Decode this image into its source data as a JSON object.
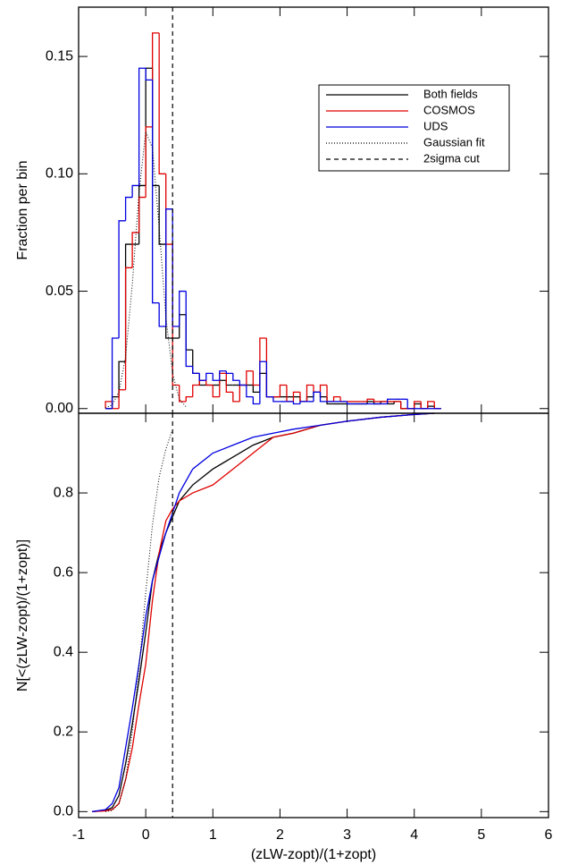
{
  "chart_data": [
    {
      "type": "histogram",
      "ylabel": "Fraction per bin",
      "xlim": [
        -1,
        6
      ],
      "ylim": [
        -0.002,
        0.171
      ],
      "yticks": [
        {
          "value": 0.0,
          "label": "0.00"
        },
        {
          "value": 0.05,
          "label": "0.05"
        },
        {
          "value": 0.1,
          "label": "0.10"
        },
        {
          "value": 0.15,
          "label": "0.15"
        }
      ],
      "bins": [
        -0.6,
        -0.5,
        -0.4,
        -0.3,
        -0.2,
        -0.1,
        0.0,
        0.1,
        0.2,
        0.3,
        0.4,
        0.5,
        0.6,
        0.7,
        0.8,
        0.9,
        1.0,
        1.1,
        1.2,
        1.3,
        1.4,
        1.5,
        1.6,
        1.7,
        1.8,
        1.9,
        2.0,
        2.1,
        2.2,
        2.3,
        2.4,
        2.5,
        2.6,
        2.7,
        2.8,
        2.9,
        3.0,
        3.1,
        3.2,
        3.3,
        3.4,
        3.5,
        3.6,
        3.7,
        3.8,
        3.9,
        4.0,
        4.1,
        4.2,
        4.3,
        4.4
      ],
      "series": [
        {
          "name": "Both fields",
          "color": "#000000",
          "values": [
            0,
            0.005,
            0.02,
            0.07,
            0.07,
            0.095,
            0.145,
            0.095,
            0.07,
            0.03,
            0.03,
            0.04,
            0.025,
            0.015,
            0.01,
            0.01,
            0.01,
            0.012,
            0.01,
            0.01,
            0.01,
            0.01,
            0.007,
            0.015,
            0.005,
            0.005,
            0.005,
            0.005,
            0.005,
            0.003,
            0.005,
            0.007,
            0.005,
            0.002,
            0.002,
            0.002,
            0.002,
            0.002,
            0.002,
            0.003,
            0.002,
            0.003,
            0.002,
            0.003,
            0,
            0,
            0.002,
            0,
            0.001,
            0
          ]
        },
        {
          "name": "COSMOS",
          "color": "#e00000",
          "values": [
            0.003,
            0,
            0.008,
            0.06,
            0.075,
            0.09,
            0.12,
            0.16,
            0.1,
            0.07,
            0.01,
            0.003,
            0.005,
            0.01,
            0.012,
            0.01,
            0.005,
            0.015,
            0.007,
            0.003,
            0.01,
            0.016,
            0.01,
            0.03,
            0.005,
            0.005,
            0.01,
            0.003,
            0.007,
            0.003,
            0.01,
            0.007,
            0.01,
            0.003,
            0.005,
            0.003,
            0.003,
            0.003,
            0.003,
            0.004,
            0.003,
            0.003,
            0.003,
            0.003,
            0,
            0,
            0.003,
            0,
            0.003,
            0
          ]
        },
        {
          "name": "UDS",
          "color": "#0000e0",
          "values": [
            0,
            0.03,
            0.08,
            0.09,
            0.095,
            0.145,
            0.14,
            0.045,
            0.035,
            0.085,
            0.035,
            0.05,
            0.018,
            0.015,
            0.012,
            0.015,
            0.012,
            0.016,
            0.015,
            0.012,
            0.01,
            0.005,
            0.002,
            0.02,
            0.005,
            0.003,
            0.003,
            0.003,
            0.002,
            0.003,
            0.003,
            0.007,
            0.003,
            0.003,
            0.003,
            0.003,
            0.002,
            0.002,
            0.002,
            0.002,
            0.002,
            0.002,
            0.004,
            0.004,
            0.004,
            0,
            0,
            0,
            0,
            0
          ]
        }
      ],
      "fit": {
        "name": "Gaussian fit",
        "color": "#000000",
        "x": [
          -0.6,
          -0.5,
          -0.4,
          -0.3,
          -0.2,
          -0.1,
          0.0,
          0.1,
          0.2,
          0.3,
          0.4,
          0.5,
          0.6
        ],
        "values": [
          0.0003,
          0.0016,
          0.007,
          0.022,
          0.053,
          0.092,
          0.118,
          0.111,
          0.077,
          0.039,
          0.015,
          0.004,
          0.0008
        ]
      },
      "vline": {
        "name": "2sigma cut",
        "color": "#000000",
        "x": 0.4
      },
      "legend": "upper right"
    },
    {
      "type": "line",
      "xlabel": "(zLW-zopt)/(1+zopt)",
      "ylabel": "N[<(zLW-zopt)/(1+zopt)]",
      "xlim": [
        -1,
        6
      ],
      "ylim": [
        -0.015,
        1.0
      ],
      "xticks": [
        -1,
        0,
        1,
        2,
        3,
        4,
        5,
        6
      ],
      "yticks": [
        {
          "value": 0.0,
          "label": "0.0"
        },
        {
          "value": 0.2,
          "label": "0.2"
        },
        {
          "value": 0.4,
          "label": "0.4"
        },
        {
          "value": 0.6,
          "label": "0.6"
        },
        {
          "value": 0.8,
          "label": "0.8"
        }
      ],
      "x": [
        -0.8,
        -0.6,
        -0.5,
        -0.4,
        -0.3,
        -0.2,
        -0.1,
        0,
        0.1,
        0.2,
        0.3,
        0.4,
        0.5,
        0.7,
        1.0,
        1.3,
        1.6,
        1.9,
        2.2,
        2.6,
        3.0,
        3.5,
        4.0,
        4.3
      ],
      "series": [
        {
          "name": "Both fields",
          "color": "#000000",
          "values": [
            0,
            0.003,
            0.01,
            0.04,
            0.12,
            0.22,
            0.33,
            0.45,
            0.58,
            0.65,
            0.7,
            0.74,
            0.78,
            0.82,
            0.86,
            0.89,
            0.92,
            0.94,
            0.95,
            0.97,
            0.98,
            0.99,
            0.997,
            1.0
          ]
        },
        {
          "name": "COSMOS",
          "color": "#e00000",
          "values": [
            0,
            0.002,
            0.005,
            0.02,
            0.08,
            0.16,
            0.27,
            0.37,
            0.53,
            0.65,
            0.73,
            0.76,
            0.78,
            0.8,
            0.82,
            0.86,
            0.9,
            0.94,
            0.95,
            0.97,
            0.98,
            0.99,
            0.997,
            1.0
          ]
        },
        {
          "name": "UDS",
          "color": "#0000e0",
          "values": [
            0,
            0.005,
            0.02,
            0.06,
            0.16,
            0.26,
            0.37,
            0.49,
            0.58,
            0.64,
            0.7,
            0.75,
            0.8,
            0.86,
            0.9,
            0.92,
            0.94,
            0.95,
            0.96,
            0.97,
            0.98,
            0.99,
            0.997,
            1.0
          ]
        }
      ],
      "fit": {
        "name": "Gaussian fit",
        "color": "#000000",
        "x": [
          -0.6,
          -0.5,
          -0.4,
          -0.3,
          -0.2,
          -0.1,
          0.0,
          0.1,
          0.2,
          0.3,
          0.4
        ],
        "values": [
          0,
          0.003,
          0.02,
          0.08,
          0.2,
          0.36,
          0.55,
          0.72,
          0.84,
          0.91,
          0.96
        ]
      },
      "vline": {
        "name": "2sigma cut",
        "color": "#000000",
        "x": 0.4
      }
    }
  ]
}
